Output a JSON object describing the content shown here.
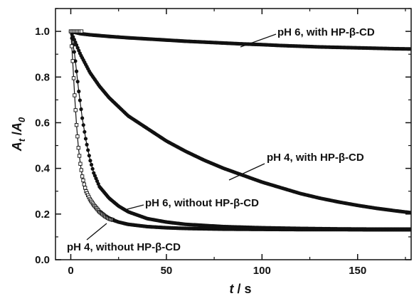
{
  "chart_data": {
    "type": "scatter",
    "title": "",
    "xlabel": {
      "main": "t",
      "unit": " / s"
    },
    "ylabel": {
      "numer": "A",
      "numer_sub": "t",
      "sep": " /",
      "denom": "A",
      "denom_sub": "0"
    },
    "xlim": [
      -8,
      178
    ],
    "ylim": [
      0.0,
      1.1
    ],
    "x_ticks": [
      0,
      50,
      100,
      150
    ],
    "y_ticks": [
      0.0,
      0.2,
      0.4,
      0.6,
      0.8,
      1.0
    ],
    "x_tick_labels": [
      "0",
      "50",
      "100",
      "150"
    ],
    "y_tick_labels": [
      "0.0",
      "0.2",
      "0.4",
      "0.6",
      "0.8",
      "1.0"
    ],
    "grid": false,
    "legend": "none",
    "series": [
      {
        "annotation": "pH 6, with HP-β-CD",
        "marker": "filled-circle",
        "x": [
          0,
          5,
          10,
          20,
          30,
          40,
          50,
          60,
          70,
          80,
          90,
          100,
          110,
          120,
          130,
          140,
          150,
          160,
          170,
          178
        ],
        "y": [
          1.0,
          0.99,
          0.985,
          0.978,
          0.972,
          0.967,
          0.962,
          0.957,
          0.953,
          0.949,
          0.945,
          0.942,
          0.938,
          0.935,
          0.932,
          0.93,
          0.928,
          0.926,
          0.924,
          0.923
        ]
      },
      {
        "annotation": "pH 4, with HP-β-CD",
        "marker": "filled-circle",
        "x": [
          0,
          2,
          5,
          10,
          15,
          20,
          30,
          40,
          50,
          60,
          70,
          80,
          90,
          100,
          110,
          120,
          130,
          140,
          150,
          160,
          170,
          178
        ],
        "y": [
          1.0,
          0.96,
          0.9,
          0.82,
          0.76,
          0.71,
          0.63,
          0.575,
          0.52,
          0.475,
          0.435,
          0.4,
          0.37,
          0.34,
          0.315,
          0.29,
          0.27,
          0.253,
          0.238,
          0.225,
          0.214,
          0.206
        ]
      },
      {
        "annotation": "pH 6, without HP-β-CD",
        "marker": "filled-circle",
        "x": [
          0,
          2,
          4,
          6,
          8,
          10,
          12,
          15,
          20,
          25,
          30,
          40,
          50,
          60,
          80,
          100,
          120,
          140,
          160,
          178
        ],
        "y": [
          1.0,
          0.9,
          0.75,
          0.62,
          0.52,
          0.44,
          0.38,
          0.32,
          0.27,
          0.235,
          0.21,
          0.18,
          0.165,
          0.155,
          0.145,
          0.14,
          0.137,
          0.135,
          0.134,
          0.134
        ]
      },
      {
        "annotation": "pH 4, without HP-β-CD",
        "marker": "open-square",
        "x": [
          0,
          1,
          2,
          3,
          4,
          5,
          6,
          7,
          8,
          10,
          12,
          15,
          18,
          20,
          25,
          30,
          40,
          50,
          60,
          80,
          100,
          120,
          140,
          160,
          178
        ],
        "y": [
          1.0,
          0.87,
          0.72,
          0.59,
          0.49,
          0.42,
          0.365,
          0.33,
          0.3,
          0.265,
          0.24,
          0.21,
          0.19,
          0.18,
          0.165,
          0.155,
          0.145,
          0.14,
          0.137,
          0.134,
          0.133,
          0.132,
          0.132,
          0.131,
          0.131
        ]
      }
    ]
  }
}
